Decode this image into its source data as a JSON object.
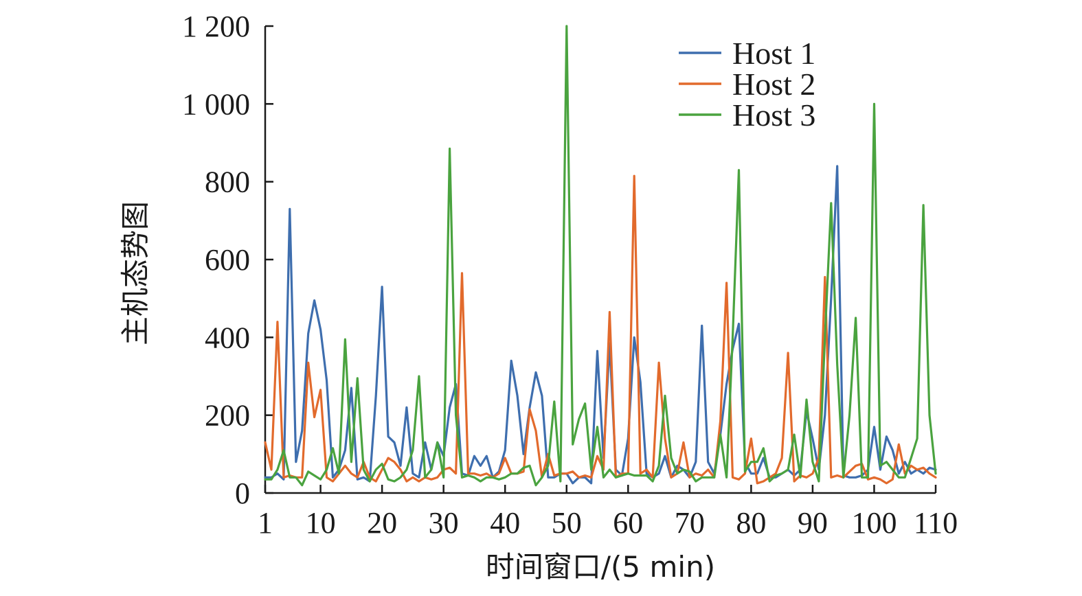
{
  "chart_data": {
    "type": "line",
    "title": "",
    "xlabel": "时间窗口/(5 min)",
    "ylabel": "主机态势图",
    "xlim": [
      1,
      110
    ],
    "ylim": [
      0,
      1200
    ],
    "x_ticks": [
      1,
      10,
      20,
      30,
      40,
      50,
      60,
      70,
      80,
      90,
      100,
      110
    ],
    "x_tick_labels": [
      "1",
      "10",
      "20",
      "30",
      "40",
      "50",
      "60",
      "70",
      "80",
      "90",
      "100",
      "110"
    ],
    "y_ticks": [
      0,
      200,
      400,
      600,
      800,
      1000,
      1200
    ],
    "y_tick_labels": [
      "0",
      "200",
      "400",
      "600",
      "800",
      "1 000",
      "1 200"
    ],
    "grid": false,
    "legend_position": "top-right",
    "x": [
      1,
      2,
      3,
      4,
      5,
      6,
      7,
      8,
      9,
      10,
      11,
      12,
      13,
      14,
      15,
      16,
      17,
      18,
      19,
      20,
      21,
      22,
      23,
      24,
      25,
      26,
      27,
      28,
      29,
      30,
      31,
      32,
      33,
      34,
      35,
      36,
      37,
      38,
      39,
      40,
      41,
      42,
      43,
      44,
      45,
      46,
      47,
      48,
      49,
      50,
      51,
      52,
      53,
      54,
      55,
      56,
      57,
      58,
      59,
      60,
      61,
      62,
      63,
      64,
      65,
      66,
      67,
      68,
      69,
      70,
      71,
      72,
      73,
      74,
      75,
      76,
      77,
      78,
      79,
      80,
      81,
      82,
      83,
      84,
      85,
      86,
      87,
      88,
      89,
      90,
      91,
      92,
      93,
      94,
      95,
      96,
      97,
      98,
      99,
      100,
      101,
      102,
      103,
      104,
      105,
      106,
      107,
      108,
      109,
      110
    ],
    "series": [
      {
        "name": "Host 1",
        "color": "#3e6eae",
        "values": [
          40,
          40,
          50,
          35,
          730,
          80,
          160,
          410,
          495,
          420,
          290,
          40,
          60,
          110,
          270,
          35,
          40,
          30,
          250,
          530,
          145,
          130,
          70,
          220,
          50,
          40,
          130,
          60,
          130,
          95,
          220,
          280,
          50,
          45,
          95,
          70,
          95,
          40,
          55,
          110,
          340,
          250,
          100,
          220,
          310,
          250,
          40,
          40,
          50,
          50,
          25,
          40,
          40,
          25,
          365,
          90,
          385,
          60,
          45,
          140,
          400,
          285,
          50,
          40,
          50,
          95,
          40,
          70,
          60,
          40,
          80,
          430,
          80,
          50,
          150,
          280,
          370,
          435,
          80,
          50,
          50,
          90,
          40,
          40,
          50,
          60,
          45,
          60,
          210,
          140,
          60,
          200,
          500,
          840,
          45,
          40,
          40,
          45,
          60,
          170,
          60,
          145,
          110,
          50,
          80,
          50,
          60,
          50,
          65,
          60
        ]
      },
      {
        "name": "Host 2",
        "color": "#e26a2c",
        "values": [
          130,
          60,
          440,
          40,
          45,
          40,
          40,
          335,
          195,
          265,
          40,
          30,
          50,
          70,
          50,
          40,
          80,
          40,
          30,
          60,
          90,
          80,
          60,
          30,
          40,
          30,
          40,
          35,
          40,
          60,
          65,
          50,
          565,
          50,
          50,
          45,
          50,
          40,
          50,
          90,
          50,
          50,
          55,
          215,
          160,
          40,
          100,
          45,
          50,
          50,
          55,
          40,
          45,
          40,
          95,
          60,
          465,
          40,
          50,
          50,
          815,
          50,
          60,
          40,
          335,
          140,
          40,
          50,
          130,
          40,
          50,
          45,
          60,
          40,
          185,
          540,
          40,
          35,
          50,
          140,
          25,
          30,
          40,
          50,
          90,
          360,
          30,
          45,
          40,
          50,
          90,
          555,
          40,
          45,
          40,
          55,
          70,
          75,
          35,
          40,
          35,
          25,
          35,
          125,
          50,
          70,
          60,
          65,
          50,
          40
        ]
      },
      {
        "name": "Host 3",
        "color": "#4aa33f",
        "values": [
          35,
          35,
          60,
          110,
          40,
          40,
          20,
          55,
          45,
          35,
          60,
          115,
          50,
          395,
          80,
          295,
          60,
          30,
          60,
          75,
          35,
          30,
          40,
          60,
          110,
          300,
          40,
          60,
          130,
          40,
          885,
          200,
          40,
          45,
          40,
          30,
          40,
          40,
          35,
          40,
          50,
          50,
          65,
          70,
          20,
          40,
          70,
          235,
          30,
          1200,
          125,
          190,
          230,
          60,
          170,
          40,
          60,
          40,
          45,
          50,
          45,
          45,
          45,
          30,
          70,
          250,
          90,
          50,
          60,
          55,
          30,
          40,
          40,
          40,
          150,
          40,
          400,
          830,
          55,
          80,
          80,
          115,
          30,
          45,
          50,
          60,
          150,
          40,
          240,
          80,
          30,
          400,
          745,
          330,
          40,
          200,
          450,
          40,
          40,
          1000,
          70,
          80,
          60,
          40,
          40,
          90,
          140,
          740,
          200,
          50
        ]
      }
    ]
  }
}
